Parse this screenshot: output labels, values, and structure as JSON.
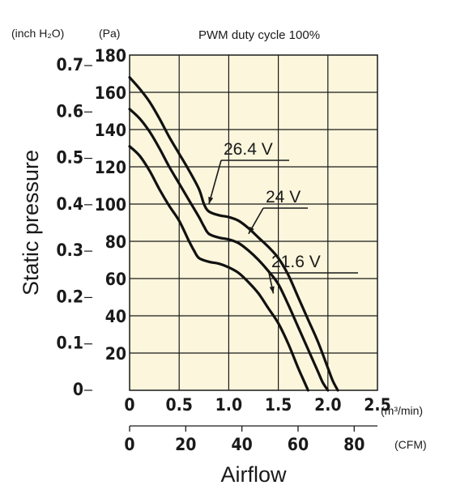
{
  "chart_data": {
    "type": "line",
    "title": "PWM duty cycle 100%",
    "xlabel": "Airflow",
    "ylabel": "Static pressure",
    "x_unit_primary": "(m³/min)",
    "x_unit_secondary": "(CFM)",
    "y_unit_primary": "(Pa)",
    "y_unit_secondary": "(inch H₂O)",
    "xlim": [
      0,
      2.5
    ],
    "ylim": [
      0,
      180
    ],
    "grid": true,
    "background": "#fbf6dc",
    "line_color": "#111111",
    "x_ticks": [
      "0",
      "0.5",
      "1.0",
      "1.5",
      "2.0",
      "2.5"
    ],
    "x_ticks_cfm": [
      "0",
      "20",
      "40",
      "60",
      "80"
    ],
    "y_ticks": [
      "20",
      "40",
      "60",
      "80",
      "100",
      "120",
      "140",
      "160",
      "180"
    ],
    "y_ticks_inch": [
      "0",
      "0.1",
      "0.2",
      "0.3",
      "0.4",
      "0.5",
      "0.6",
      "0.7"
    ],
    "series": [
      {
        "name": "26.4 V",
        "x": [
          0,
          0.1,
          0.2,
          0.3,
          0.4,
          0.5,
          0.6,
          0.7,
          0.75,
          0.8,
          0.9,
          1.0,
          1.1,
          1.2,
          1.3,
          1.4,
          1.5,
          1.6,
          1.7,
          1.8,
          1.9,
          2.0,
          2.05,
          2.1
        ],
        "y": [
          168,
          162,
          155,
          146,
          136,
          127,
          118,
          108,
          100,
          96,
          94,
          93,
          91,
          87,
          82,
          77,
          71,
          62,
          50,
          38,
          26,
          12,
          5,
          0
        ]
      },
      {
        "name": "24 V",
        "x": [
          0,
          0.1,
          0.2,
          0.3,
          0.4,
          0.5,
          0.6,
          0.7,
          0.75,
          0.8,
          0.9,
          1.0,
          1.1,
          1.2,
          1.3,
          1.4,
          1.5,
          1.6,
          1.7,
          1.8,
          1.9,
          1.95,
          2.0
        ],
        "y": [
          151,
          146,
          139,
          130,
          120,
          111,
          102,
          93,
          88,
          84,
          82,
          81,
          79,
          75,
          70,
          64,
          57,
          46,
          34,
          22,
          10,
          4,
          0
        ]
      },
      {
        "name": "21.6 V",
        "x": [
          0,
          0.1,
          0.2,
          0.3,
          0.4,
          0.5,
          0.6,
          0.65,
          0.7,
          0.8,
          0.9,
          1.0,
          1.1,
          1.2,
          1.3,
          1.4,
          1.5,
          1.6,
          1.7,
          1.75,
          1.8
        ],
        "y": [
          131,
          126,
          118,
          108,
          99,
          91,
          80,
          75,
          71,
          69,
          68,
          66,
          63,
          58,
          52,
          44,
          36,
          25,
          12,
          6,
          0
        ]
      }
    ]
  }
}
